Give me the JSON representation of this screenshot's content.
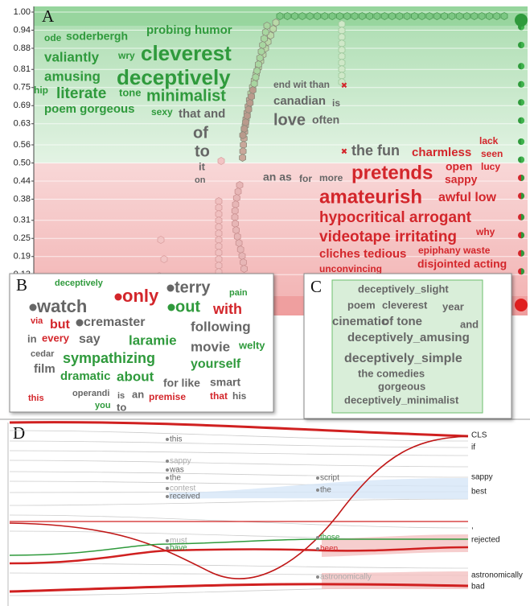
{
  "panel_a": {
    "label": "A",
    "ylim": [
      0,
      1
    ],
    "yticks": [
      {
        "value": 1.0,
        "label": "1.00"
      },
      {
        "value": 0.94,
        "label": "0.94"
      },
      {
        "value": 0.88,
        "label": "0.88"
      },
      {
        "value": 0.81,
        "label": "0.81"
      },
      {
        "value": 0.75,
        "label": "0.75"
      },
      {
        "value": 0.69,
        "label": "0.69"
      },
      {
        "value": 0.63,
        "label": "0.63"
      },
      {
        "value": 0.56,
        "label": "0.56"
      },
      {
        "value": 0.5,
        "label": "0.50"
      },
      {
        "value": 0.44,
        "label": "0.44"
      },
      {
        "value": 0.38,
        "label": "0.38"
      },
      {
        "value": 0.31,
        "label": "0.31"
      },
      {
        "value": 0.25,
        "label": "0.25"
      },
      {
        "value": 0.19,
        "label": "0.19"
      },
      {
        "value": 0.13,
        "label": "0.13"
      }
    ],
    "words": [
      {
        "text": "ode",
        "color": "green"
      },
      {
        "text": "soderbergh",
        "color": "green"
      },
      {
        "text": "probing humor",
        "color": "green"
      },
      {
        "text": "valiantly",
        "color": "green"
      },
      {
        "text": "wry",
        "color": "green"
      },
      {
        "text": "cleverest",
        "color": "green"
      },
      {
        "text": "amusing",
        "color": "green"
      },
      {
        "text": "deceptively",
        "color": "green"
      },
      {
        "text": "hip",
        "color": "green"
      },
      {
        "text": "literate",
        "color": "green"
      },
      {
        "text": "tone",
        "color": "green"
      },
      {
        "text": "minimalist",
        "color": "green"
      },
      {
        "text": "poem gorgeous",
        "color": "green"
      },
      {
        "text": "sexy",
        "color": "green"
      },
      {
        "text": "that and",
        "color": "gray"
      },
      {
        "text": "of",
        "color": "gray"
      },
      {
        "text": "to",
        "color": "gray"
      },
      {
        "text": "it",
        "color": "gray"
      },
      {
        "text": "on",
        "color": "gray"
      },
      {
        "text": "end wit than",
        "color": "gray"
      },
      {
        "text": "canadian",
        "color": "gray"
      },
      {
        "text": "is",
        "color": "gray"
      },
      {
        "text": "love",
        "color": "gray"
      },
      {
        "text": "often",
        "color": "gray"
      },
      {
        "text": "the fun",
        "color": "gray"
      },
      {
        "text": "an as",
        "color": "gray"
      },
      {
        "text": "for",
        "color": "gray"
      },
      {
        "text": "more",
        "color": "gray"
      },
      {
        "text": "charmless",
        "color": "red"
      },
      {
        "text": "lack",
        "color": "red"
      },
      {
        "text": "seen",
        "color": "red"
      },
      {
        "text": "pretends",
        "color": "red"
      },
      {
        "text": "open",
        "color": "red"
      },
      {
        "text": "lucy",
        "color": "red"
      },
      {
        "text": "sappy",
        "color": "red"
      },
      {
        "text": "amateurish",
        "color": "red"
      },
      {
        "text": "awful low",
        "color": "red"
      },
      {
        "text": "hypocritical arrogant",
        "color": "red"
      },
      {
        "text": "videotape irritating",
        "color": "red"
      },
      {
        "text": "why",
        "color": "red"
      },
      {
        "text": "cliches tedious",
        "color": "red"
      },
      {
        "text": "epiphany waste",
        "color": "red"
      },
      {
        "text": "unconvincing",
        "color": "red"
      },
      {
        "text": "disjointed acting",
        "color": "red"
      }
    ]
  },
  "panel_b": {
    "label": "B",
    "words": [
      {
        "text": "deceptively",
        "color": "green"
      },
      {
        "text": "pain",
        "color": "green"
      },
      {
        "text": "out",
        "color": "green"
      },
      {
        "text": "sympathizing",
        "color": "green"
      },
      {
        "text": "laramie",
        "color": "green"
      },
      {
        "text": "yourself",
        "color": "green"
      },
      {
        "text": "dramatic",
        "color": "green"
      },
      {
        "text": "about",
        "color": "green"
      },
      {
        "text": "welty",
        "color": "green"
      },
      {
        "text": "you",
        "color": "green"
      },
      {
        "text": "watch",
        "color": "gray"
      },
      {
        "text": "cremaster",
        "color": "gray"
      },
      {
        "text": "terry",
        "color": "gray"
      },
      {
        "text": "following",
        "color": "gray"
      },
      {
        "text": "say",
        "color": "gray"
      },
      {
        "text": "movie",
        "color": "gray"
      },
      {
        "text": "in",
        "color": "gray"
      },
      {
        "text": "cedar",
        "color": "gray"
      },
      {
        "text": "film",
        "color": "gray"
      },
      {
        "text": "for like",
        "color": "gray"
      },
      {
        "text": "smart",
        "color": "gray"
      },
      {
        "text": "operandi",
        "color": "gray"
      },
      {
        "text": "is",
        "color": "gray"
      },
      {
        "text": "an",
        "color": "gray"
      },
      {
        "text": "to",
        "color": "gray"
      },
      {
        "text": "his",
        "color": "gray"
      },
      {
        "text": "only",
        "color": "red"
      },
      {
        "text": "with",
        "color": "red"
      },
      {
        "text": "via",
        "color": "red"
      },
      {
        "text": "but",
        "color": "red"
      },
      {
        "text": "every",
        "color": "red"
      },
      {
        "text": "this",
        "color": "red"
      },
      {
        "text": "premise",
        "color": "red"
      },
      {
        "text": "that",
        "color": "red"
      }
    ]
  },
  "panel_c": {
    "label": "C",
    "words": [
      {
        "text": "deceptively_slight",
        "color": "gray"
      },
      {
        "text": "poem",
        "color": "gray"
      },
      {
        "text": "cleverest",
        "color": "gray"
      },
      {
        "text": "year",
        "color": "gray"
      },
      {
        "text": "cinematic",
        "color": "gray"
      },
      {
        "text": "of tone",
        "color": "gray"
      },
      {
        "text": "and",
        "color": "gray"
      },
      {
        "text": "deceptively_amusing",
        "color": "gray"
      },
      {
        "text": "deceptively_simple",
        "color": "gray"
      },
      {
        "text": "the comedies",
        "color": "gray"
      },
      {
        "text": "gorgeous",
        "color": "gray"
      },
      {
        "text": "deceptively_minimalist",
        "color": "gray"
      }
    ]
  },
  "panel_d": {
    "label": "D",
    "left_tokens": [
      {
        "text": "this",
        "color": "gray"
      },
      {
        "text": "sappy",
        "color": "lightgray"
      },
      {
        "text": "was",
        "color": "gray"
      },
      {
        "text": "the",
        "color": "gray"
      },
      {
        "text": "contest",
        "color": "lightgray"
      },
      {
        "text": "received",
        "color": "gray"
      },
      {
        "text": "must",
        "color": "lightgray"
      },
      {
        "text": "have",
        "color": "green"
      }
    ],
    "middle_tokens": [
      {
        "text": "script",
        "color": "gray"
      },
      {
        "text": "the",
        "color": "gray"
      },
      {
        "text": "those",
        "color": "green"
      },
      {
        "text": "been",
        "color": "red"
      },
      {
        "text": "astronomically",
        "color": "lightgray"
      }
    ],
    "right_tokens": [
      {
        "text": "CLS",
        "color": "dark"
      },
      {
        "text": "if",
        "color": "dark"
      },
      {
        "text": "sappy",
        "color": "dark"
      },
      {
        "text": "best",
        "color": "dark"
      },
      {
        "text": ",",
        "color": "dark"
      },
      {
        "text": "rejected",
        "color": "dark"
      },
      {
        "text": "astronomically",
        "color": "dark"
      },
      {
        "text": "bad",
        "color": "dark"
      }
    ]
  }
}
